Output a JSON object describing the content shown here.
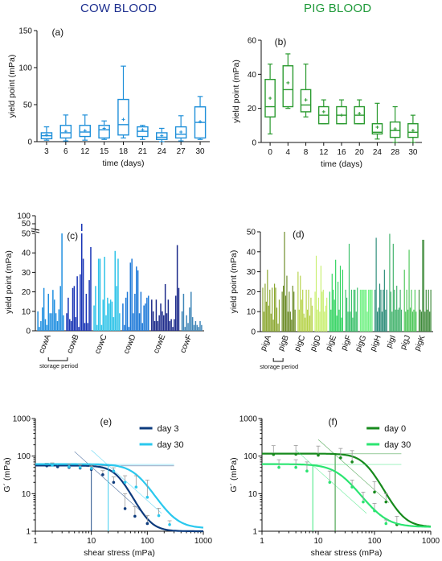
{
  "header": {
    "cow_title": "COW BLOOD",
    "pig_title": "PIG BLOOD"
  },
  "colors": {
    "cow": "#1e8fd9",
    "pig": "#2a9a2f",
    "cow_dark": "#0b3a7a",
    "cow_light": "#23c6ec",
    "pig_dark": "#137a1a",
    "pig_light": "#27e06a"
  },
  "chart_data": [
    {
      "id": "a",
      "panel_label": "(a)",
      "type": "box",
      "xlabel": "time (days)",
      "ylabel": "yield point (mPa)",
      "ylim": [
        0,
        150
      ],
      "yticks": [
        0,
        50,
        100,
        150
      ],
      "categories": [
        "3",
        "6",
        "12",
        "15",
        "18",
        "21",
        "24",
        "27",
        "30"
      ],
      "boxes": [
        {
          "min": 2,
          "q1": 4,
          "median": 8,
          "q3": 12,
          "max": 20,
          "mean": 9
        },
        {
          "min": 1,
          "q1": 5,
          "median": 12,
          "q3": 22,
          "max": 36,
          "mean": 14
        },
        {
          "min": 2,
          "q1": 7,
          "median": 13,
          "q3": 22,
          "max": 36,
          "mean": 15
        },
        {
          "min": 3,
          "q1": 5,
          "median": 16,
          "q3": 22,
          "max": 28,
          "mean": 18
        },
        {
          "min": 5,
          "q1": 9,
          "median": 23,
          "q3": 57,
          "max": 102,
          "mean": 30
        },
        {
          "min": 3,
          "q1": 7,
          "median": 14,
          "q3": 20,
          "max": 22,
          "mean": 16
        },
        {
          "min": 0,
          "q1": 3,
          "median": 6,
          "q3": 12,
          "max": 18,
          "mean": 8
        },
        {
          "min": 1,
          "q1": 5,
          "median": 10,
          "q3": 20,
          "max": 35,
          "mean": 13
        },
        {
          "min": 3,
          "q1": 5,
          "median": 26,
          "q3": 47,
          "max": 61,
          "mean": 27
        }
      ]
    },
    {
      "id": "b",
      "panel_label": "(b)",
      "type": "box",
      "xlabel": "time (days)",
      "ylabel": "yield point (mPa)",
      "ylim": [
        0,
        60
      ],
      "yticks": [
        0,
        20,
        40,
        60
      ],
      "categories": [
        "0",
        "4",
        "8",
        "12",
        "16",
        "20",
        "24",
        "28",
        "30"
      ],
      "boxes": [
        {
          "min": 5,
          "q1": 15,
          "median": 21,
          "q3": 37,
          "max": 46,
          "mean": 26
        },
        {
          "min": 20,
          "q1": 21,
          "median": 31,
          "q3": 45,
          "max": 52,
          "mean": 35
        },
        {
          "min": 15,
          "q1": 18,
          "median": 22,
          "q3": 31,
          "max": 46,
          "mean": 25
        },
        {
          "min": 11,
          "q1": 11,
          "median": 16,
          "q3": 21,
          "max": 25,
          "mean": 18
        },
        {
          "min": 11,
          "q1": 11,
          "median": 16,
          "q3": 21,
          "max": 25,
          "mean": 16
        },
        {
          "min": 11,
          "q1": 11,
          "median": 16,
          "q3": 21,
          "max": 25,
          "mean": 17
        },
        {
          "min": 2,
          "q1": 5,
          "median": 6,
          "q3": 11,
          "max": 23,
          "mean": 9
        },
        {
          "min": 0,
          "q1": 3,
          "median": 7,
          "q3": 12,
          "max": 21,
          "mean": 8
        },
        {
          "min": 0,
          "q1": 3,
          "median": 6,
          "q3": 11,
          "max": 16,
          "mean": 7
        }
      ]
    },
    {
      "id": "c",
      "panel_label": "(c)",
      "type": "bar",
      "ylabel": "yield point (mPa)",
      "ylim": [
        0,
        50
      ],
      "yticks": [
        0,
        10,
        20,
        30,
        40,
        50
      ],
      "upper_ticks": [
        "50",
        "100"
      ],
      "groups": [
        "cowA",
        "cowB",
        "cowC",
        "cowD",
        "cowE",
        "cowF"
      ],
      "group_colors": [
        "#1f8fe0",
        "#1733b5",
        "#2ec3e8",
        "#1c78d8",
        "#1c2a8a",
        "#3f86b8"
      ],
      "annotation": "storage period",
      "values": [
        [
          10,
          2,
          5,
          12,
          22,
          6,
          3,
          19,
          9,
          9,
          21,
          16,
          9,
          5,
          11,
          23,
          50,
          8
        ],
        [
          9,
          17,
          6,
          5,
          22,
          23,
          7,
          28,
          2,
          29,
          100,
          37,
          4,
          19,
          4,
          26,
          43
        ],
        [
          13,
          23,
          3,
          37,
          37,
          3,
          16,
          38,
          8,
          17,
          14,
          16,
          15,
          7,
          41,
          23,
          37,
          9
        ],
        [
          14,
          3,
          17,
          20,
          2,
          35,
          37,
          9,
          19,
          33,
          31,
          9,
          20,
          4,
          13,
          14,
          17,
          18
        ],
        [
          16,
          10,
          5,
          16,
          5,
          8,
          14,
          10,
          8,
          24,
          9,
          16,
          5,
          6,
          2,
          6,
          18,
          44,
          22
        ],
        [
          10,
          19,
          2,
          8,
          4,
          12,
          20,
          7,
          3,
          5,
          3,
          2,
          5,
          3
        ]
      ]
    },
    {
      "id": "d",
      "panel_label": "(d)",
      "type": "bar",
      "ylabel": "yield point (mPa)",
      "ylim": [
        0,
        50
      ],
      "yticks": [
        0,
        10,
        20,
        30,
        40,
        50
      ],
      "groups": [
        "pigA",
        "pigB",
        "pigC",
        "pigD",
        "pigE",
        "pigF",
        "pigG",
        "pigH",
        "pigI",
        "pigJ",
        "pigK"
      ],
      "group_colors": [
        "#8aa62e",
        "#6a8a25",
        "#b5d247",
        "#c9ef70",
        "#2fd35e",
        "#3ac06a",
        "#72f184",
        "#2b8c78",
        "#3fb16a",
        "#4fc85a",
        "#3e8a3a"
      ],
      "annotation": "storage period",
      "values": [
        [
          22,
          10,
          24,
          15,
          31,
          13,
          21,
          9,
          22,
          6,
          24,
          22,
          12,
          4,
          16
        ],
        [
          20,
          23,
          50,
          18,
          28,
          10,
          20,
          10,
          6,
          23,
          20,
          11
        ],
        [
          30,
          11,
          28,
          16,
          21,
          9,
          7,
          21,
          11,
          21,
          8,
          17,
          13
        ],
        [
          20,
          38,
          11,
          17,
          10,
          33,
          20,
          21,
          10,
          13,
          17
        ],
        [
          20,
          11,
          29,
          21,
          16,
          36,
          8,
          25,
          11,
          33,
          7,
          31
        ],
        [
          21,
          17,
          10,
          44,
          10,
          21,
          7,
          21,
          21,
          10,
          22
        ],
        [
          21,
          21,
          21,
          21,
          21,
          21,
          10,
          21,
          21,
          21,
          21
        ],
        [
          21,
          47,
          10,
          12,
          24,
          21,
          10,
          21,
          31,
          11,
          21
        ],
        [
          49,
          20,
          10,
          44,
          21,
          11,
          23,
          11,
          12,
          21,
          11
        ],
        [
          31,
          10,
          21,
          11,
          41,
          12,
          21,
          10,
          11,
          21,
          10
        ],
        [
          21,
          11,
          10,
          46,
          46,
          10,
          21,
          11,
          21,
          10,
          21
        ]
      ]
    },
    {
      "id": "e",
      "panel_label": "(e)",
      "type": "line",
      "xlabel": "shear stress (mPa)",
      "ylabel": "G´ (mPa)",
      "xscale": "log",
      "yscale": "log",
      "xlim": [
        1,
        1000
      ],
      "ylim": [
        1,
        1000
      ],
      "xticks": [
        "1",
        "10",
        "100",
        "1000"
      ],
      "yticks": [
        "1",
        "10",
        "100",
        "1000"
      ],
      "legend_position": "top-right",
      "series": [
        {
          "name": "day 3",
          "color": "#0d3b7d",
          "plateau": 55,
          "tau0": 30,
          "n": 3.2,
          "floor": 1,
          "points": [
            [
              1.6,
              55,
              10
            ],
            [
              2.5,
              52,
              10
            ],
            [
              4,
              50,
              10
            ],
            [
              6.3,
              48,
              10
            ],
            [
              10,
              44,
              9
            ],
            [
              16,
              32,
              9
            ],
            [
              25,
              20,
              8
            ],
            [
              40,
              4,
              6
            ],
            [
              60,
              2.5,
              2
            ],
            [
              100,
              1.6,
              1
            ]
          ],
          "yield_x": 10
        },
        {
          "name": "day 30",
          "color": "#2ac8ee",
          "plateau": 60,
          "tau0": 65,
          "n": 2.6,
          "floor": 1.2,
          "points": [
            [
              2,
              57,
              9
            ],
            [
              4,
              52,
              9
            ],
            [
              6.3,
              50,
              10
            ],
            [
              10,
              47,
              10
            ],
            [
              25,
              40,
              9
            ],
            [
              40,
              20,
              10
            ],
            [
              63,
              15,
              15
            ],
            [
              100,
              8,
              15
            ],
            [
              160,
              2.6,
              1.5
            ],
            [
              250,
              1.5,
              0.4
            ]
          ],
          "yield_x": 20
        }
      ]
    },
    {
      "id": "f",
      "panel_label": "(f)",
      "type": "line",
      "xlabel": "shear stress (mPa)",
      "ylabel": "G´ (mPa)",
      "xscale": "log",
      "yscale": "log",
      "xlim": [
        1,
        1000
      ],
      "ylim": [
        1,
        1000
      ],
      "xticks": [
        "1",
        "10",
        "100",
        "1000"
      ],
      "yticks": [
        "1",
        "10",
        "100",
        "1000"
      ],
      "legend_position": "top-right",
      "series": [
        {
          "name": "day 0",
          "color": "#178a1d",
          "plateau": 115,
          "tau0": 70,
          "n": 3.0,
          "floor": 1.3,
          "points": [
            [
              1.6,
              110,
              80
            ],
            [
              4,
              112,
              80
            ],
            [
              10,
              105,
              80
            ],
            [
              25,
              90,
              70
            ],
            [
              40,
              70,
              70
            ],
            [
              100,
              11,
              10
            ],
            [
              160,
              6,
              4
            ],
            [
              250,
              1.5,
              1
            ]
          ],
          "yield_x": 20
        },
        {
          "name": "day 30",
          "color": "#2be571",
          "plateau": 60,
          "tau0": 25,
          "n": 2.3,
          "floor": 1.3,
          "points": [
            [
              2,
              50,
              30
            ],
            [
              4,
              50,
              30
            ],
            [
              6.3,
              40,
              30
            ],
            [
              16,
              20,
              20
            ],
            [
              40,
              15,
              8
            ],
            [
              63,
              6,
              5
            ],
            [
              100,
              3.5,
              2
            ],
            [
              160,
              1.6,
              0.4
            ]
          ],
          "yield_x": 8
        }
      ]
    }
  ]
}
